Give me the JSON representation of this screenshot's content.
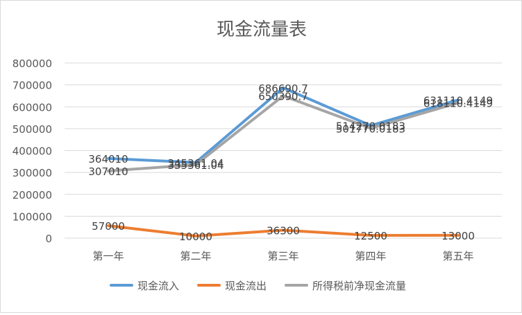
{
  "chart_data": {
    "type": "line",
    "title": "现金流量表",
    "xlabel": "",
    "ylabel": "",
    "categories": [
      "第一年",
      "第二年",
      "第三年",
      "第四年",
      "第五年"
    ],
    "ylim": [
      0,
      800000
    ],
    "yticks": [
      0,
      100000,
      200000,
      300000,
      400000,
      500000,
      600000,
      700000,
      800000
    ],
    "grid": true,
    "legend": "bottom",
    "series": [
      {
        "name": "现金流入",
        "color": "#5b9bd5",
        "values": [
          364010,
          345361.04,
          686690.7,
          514270.0183,
          631110.4149
        ],
        "labels": [
          "364010",
          "345361.04",
          "686690.7",
          "514270.0183",
          "631110.4149"
        ]
      },
      {
        "name": "现金流出",
        "color": "#ed7d31",
        "values": [
          57000,
          10000,
          36300,
          12500,
          13000
        ],
        "labels": [
          "57000",
          "10000",
          "36300",
          "12500",
          "13000"
        ]
      },
      {
        "name": "所得税前净现金流量",
        "color": "#a5a5a5",
        "values": [
          307010,
          335361.04,
          650390.7,
          501770.0183,
          618110.4149
        ],
        "labels": [
          "307010",
          "335361.04",
          "650390.7",
          "501770.0183",
          "618110.4149"
        ]
      }
    ]
  }
}
